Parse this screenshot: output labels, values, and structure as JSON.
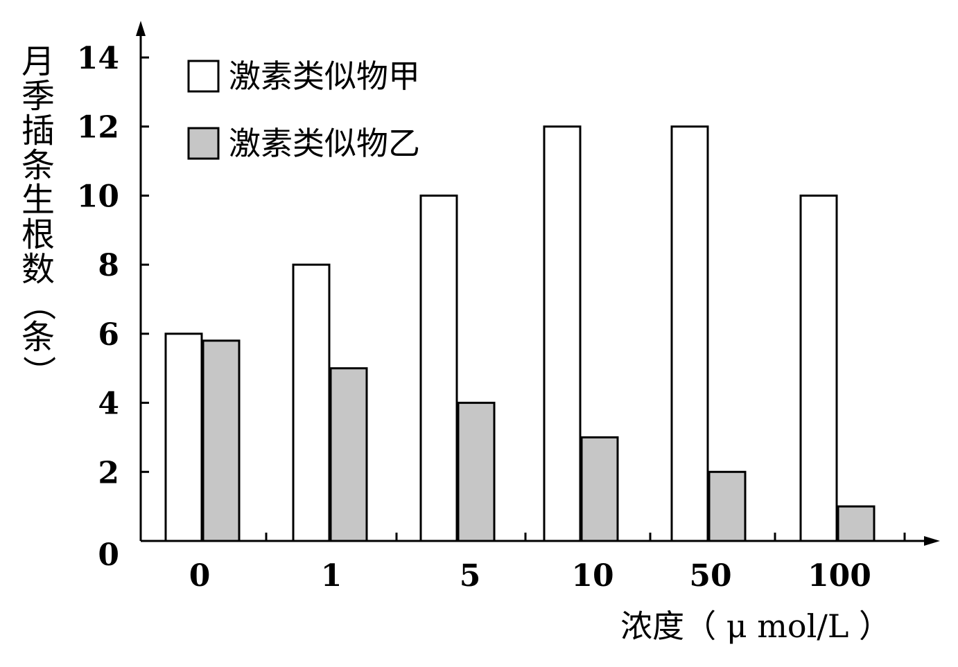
{
  "chart_data": {
    "type": "bar",
    "title": "",
    "xlabel": "浓度（ μ mol/L ）",
    "ylabel": "月季插条生根数（条）",
    "categories": [
      "0",
      "1",
      "5",
      "10",
      "50",
      "100"
    ],
    "series": [
      {
        "name": "激素类似物甲",
        "values": [
          6,
          8,
          10,
          12,
          12,
          10
        ],
        "color": "#ffffff"
      },
      {
        "name": "激素类似物乙",
        "values": [
          5.8,
          5,
          4,
          3,
          2,
          1
        ],
        "color": "#c6c6c6"
      }
    ],
    "ylim": [
      0,
      14
    ],
    "yticks": [
      "0",
      "2",
      "4",
      "6",
      "8",
      "10",
      "12",
      "14"
    ],
    "grid": false,
    "legend_position": "top-left"
  }
}
